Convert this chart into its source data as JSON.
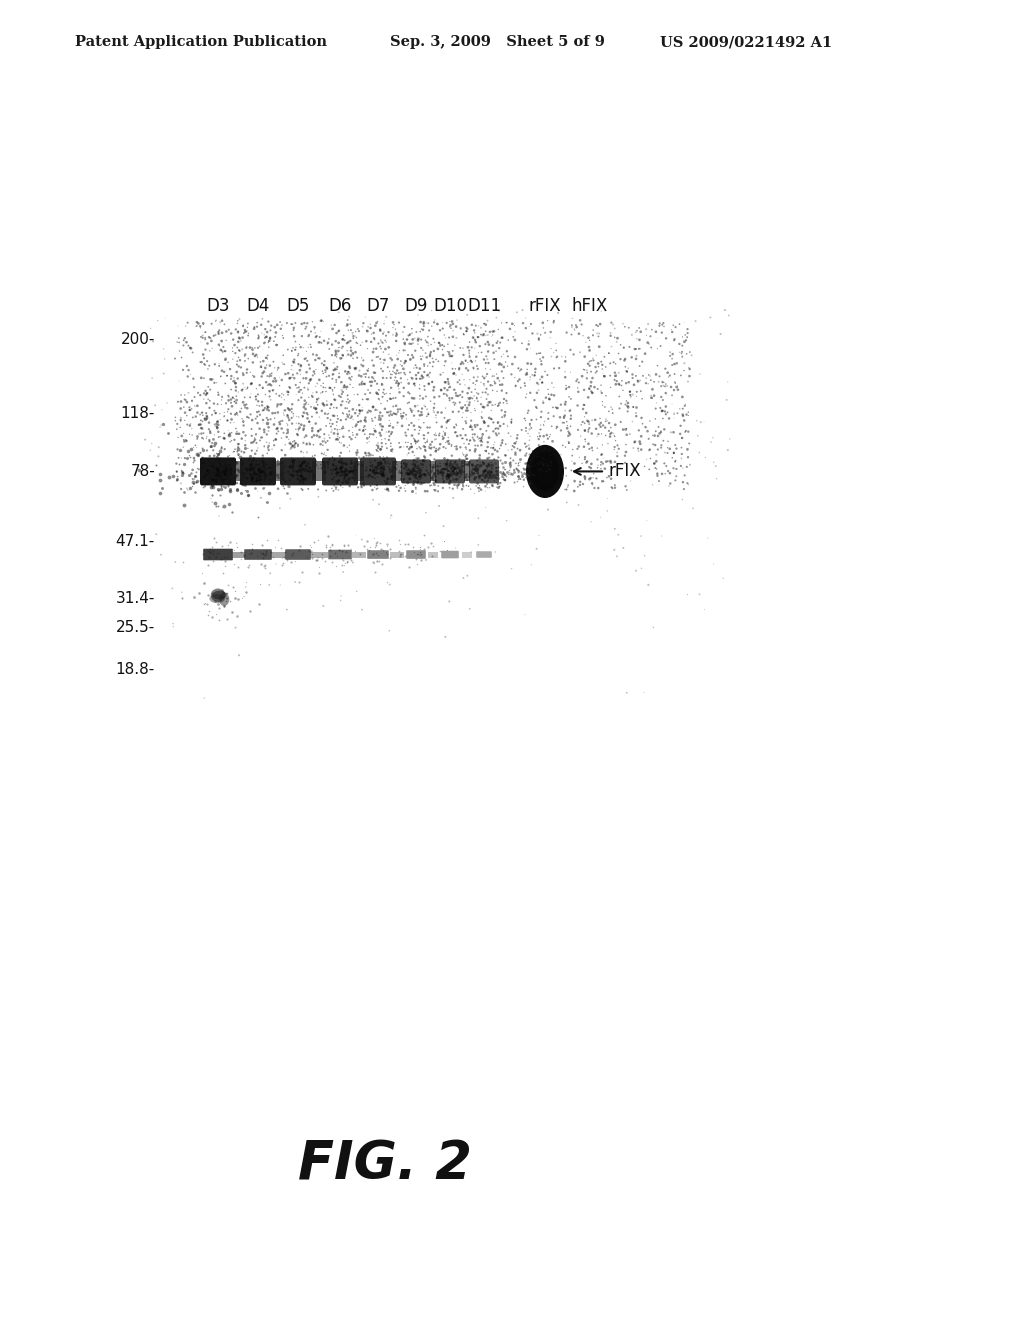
{
  "background_color": "#ffffff",
  "header_left": "Patent Application Publication",
  "header_mid": "Sep. 3, 2009   Sheet 5 of 9",
  "header_right": "US 2009/0221492 A1",
  "header_fontsize": 10.5,
  "fig_label": "FIG. 2",
  "fig_label_fontsize": 38,
  "lane_labels": [
    "D3",
    "D4",
    "D5",
    "D6",
    "D7",
    "D9",
    "D10",
    "D11",
    "rFIX",
    "hFIX"
  ],
  "lane_label_fontsize": 12,
  "mw_markers": [
    "200-",
    "118-",
    "78-",
    "47.1-",
    "31.4-",
    "25.5-",
    "18.8-"
  ],
  "mw_values": [
    200,
    118,
    78,
    47.1,
    31.4,
    25.5,
    18.8
  ],
  "mw_fontsize": 11,
  "rfix_label": "← rFIX",
  "rfix_annotation_fontsize": 12
}
